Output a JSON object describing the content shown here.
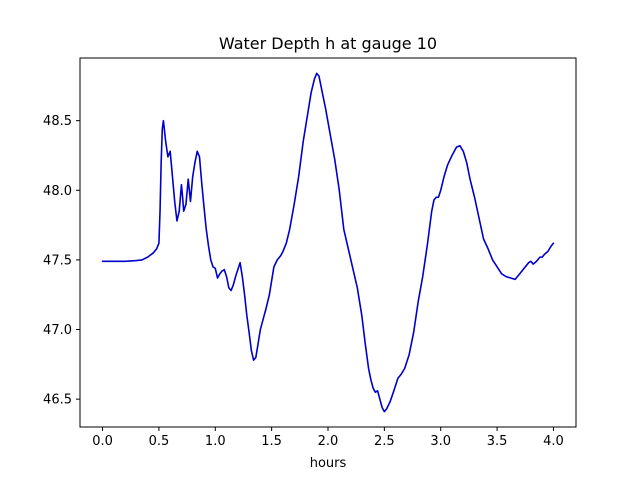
{
  "chart_data": {
    "type": "line",
    "title": "Water Depth h at gauge 10",
    "xlabel": "hours",
    "ylabel": "",
    "xlim": [
      -0.2,
      4.2
    ],
    "ylim": [
      46.3,
      48.95
    ],
    "xticks": [
      0.0,
      0.5,
      1.0,
      1.5,
      2.0,
      2.5,
      3.0,
      3.5,
      4.0
    ],
    "xtick_labels": [
      "0.0",
      "0.5",
      "1.0",
      "1.5",
      "2.0",
      "2.5",
      "3.0",
      "3.5",
      "4.0"
    ],
    "yticks": [
      46.5,
      47.0,
      47.5,
      48.0,
      48.5
    ],
    "ytick_labels": [
      "46.5",
      "47.0",
      "47.5",
      "48.0",
      "48.5"
    ],
    "grid": false,
    "series": [
      {
        "color": "#0000cc",
        "x": [
          0.0,
          0.1,
          0.2,
          0.3,
          0.35,
          0.4,
          0.45,
          0.48,
          0.5,
          0.51,
          0.52,
          0.53,
          0.54,
          0.56,
          0.58,
          0.6,
          0.62,
          0.64,
          0.66,
          0.68,
          0.7,
          0.71,
          0.72,
          0.74,
          0.76,
          0.78,
          0.8,
          0.82,
          0.84,
          0.86,
          0.88,
          0.9,
          0.92,
          0.94,
          0.96,
          0.98,
          1.0,
          1.02,
          1.04,
          1.06,
          1.08,
          1.1,
          1.12,
          1.14,
          1.16,
          1.18,
          1.2,
          1.22,
          1.24,
          1.26,
          1.28,
          1.3,
          1.32,
          1.34,
          1.36,
          1.38,
          1.4,
          1.42,
          1.45,
          1.48,
          1.5,
          1.52,
          1.55,
          1.58,
          1.6,
          1.63,
          1.66,
          1.7,
          1.74,
          1.78,
          1.82,
          1.85,
          1.88,
          1.9,
          1.92,
          1.95,
          1.98,
          2.02,
          2.06,
          2.1,
          2.14,
          2.18,
          2.22,
          2.26,
          2.3,
          2.33,
          2.36,
          2.38,
          2.4,
          2.42,
          2.44,
          2.46,
          2.48,
          2.5,
          2.52,
          2.55,
          2.58,
          2.6,
          2.62,
          2.65,
          2.68,
          2.72,
          2.76,
          2.8,
          2.84,
          2.88,
          2.92,
          2.94,
          2.96,
          2.98,
          3.0,
          3.03,
          3.06,
          3.1,
          3.14,
          3.17,
          3.2,
          3.23,
          3.26,
          3.3,
          3.34,
          3.38,
          3.42,
          3.46,
          3.5,
          3.54,
          3.58,
          3.62,
          3.66,
          3.7,
          3.74,
          3.78,
          3.8,
          3.82,
          3.85,
          3.88,
          3.9,
          3.92,
          3.95,
          3.98,
          4.0
        ],
        "y": [
          47.49,
          47.49,
          47.49,
          47.495,
          47.5,
          47.52,
          47.55,
          47.58,
          47.62,
          47.85,
          48.2,
          48.44,
          48.5,
          48.35,
          48.24,
          48.28,
          48.1,
          47.92,
          47.78,
          47.85,
          48.04,
          47.95,
          47.85,
          47.9,
          48.08,
          47.92,
          48.1,
          48.2,
          48.28,
          48.24,
          48.05,
          47.88,
          47.72,
          47.6,
          47.5,
          47.45,
          47.44,
          47.37,
          47.4,
          47.42,
          47.43,
          47.38,
          47.3,
          47.28,
          47.32,
          47.38,
          47.43,
          47.48,
          47.38,
          47.25,
          47.1,
          46.98,
          46.85,
          46.78,
          46.8,
          46.9,
          47.0,
          47.06,
          47.15,
          47.25,
          47.35,
          47.45,
          47.5,
          47.53,
          47.56,
          47.62,
          47.72,
          47.9,
          48.1,
          48.35,
          48.55,
          48.7,
          48.8,
          48.84,
          48.82,
          48.7,
          48.58,
          48.4,
          48.22,
          48.0,
          47.72,
          47.58,
          47.44,
          47.3,
          47.1,
          46.9,
          46.72,
          46.64,
          46.58,
          46.55,
          46.56,
          46.5,
          46.44,
          46.41,
          46.43,
          46.48,
          46.55,
          46.6,
          46.65,
          46.68,
          46.72,
          46.82,
          46.98,
          47.2,
          47.38,
          47.6,
          47.85,
          47.93,
          47.95,
          47.95,
          48.0,
          48.1,
          48.18,
          48.25,
          48.31,
          48.32,
          48.28,
          48.2,
          48.08,
          47.95,
          47.8,
          47.65,
          47.58,
          47.5,
          47.45,
          47.4,
          47.38,
          47.37,
          47.36,
          47.4,
          47.44,
          47.48,
          47.49,
          47.47,
          47.49,
          47.52,
          47.52,
          47.54,
          47.56,
          47.6,
          47.62
        ]
      }
    ]
  }
}
